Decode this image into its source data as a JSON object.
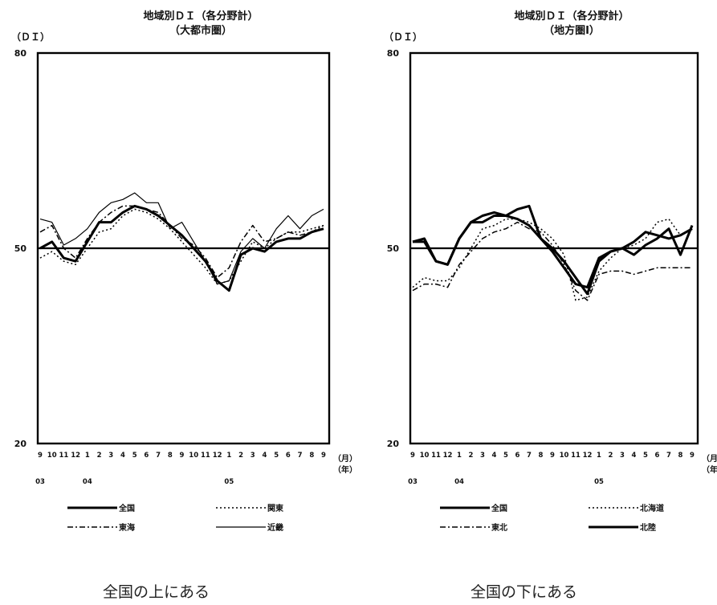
{
  "chart_data": [
    {
      "type": "line",
      "title": "地域別ＤＩ（各分野計）",
      "subtitle": "（大都市圏）",
      "ylabel": "（ＤＩ）",
      "ylim": [
        20,
        80
      ],
      "yticks": [
        20,
        50,
        80
      ],
      "reference_line": 50,
      "x_categories": [
        "9",
        "10",
        "11",
        "12",
        "1",
        "2",
        "3",
        "4",
        "5",
        "6",
        "7",
        "8",
        "9",
        "10",
        "11",
        "12",
        "1",
        "2",
        "3",
        "4",
        "5",
        "6",
        "7",
        "8",
        "9"
      ],
      "x_unit_month": "（月）",
      "x_unit_year": "（年）",
      "year_labels": [
        {
          "label": "03",
          "index": 0
        },
        {
          "label": "04",
          "index": 4
        },
        {
          "label": "05",
          "index": 16
        }
      ],
      "series": [
        {
          "name": "全国",
          "style": "thick",
          "values": [
            50.0,
            51.0,
            48.5,
            48.0,
            51.0,
            54.0,
            54.0,
            55.5,
            56.5,
            56.0,
            55.0,
            53.5,
            52.0,
            50.0,
            48.0,
            45.0,
            43.5,
            49.0,
            50.0,
            49.5,
            51.0,
            51.5,
            51.5,
            52.5,
            53.0
          ]
        },
        {
          "name": "関東",
          "style": "dotted",
          "values": [
            48.5,
            49.5,
            48.0,
            47.5,
            50.0,
            52.5,
            53.0,
            55.0,
            56.0,
            55.5,
            54.5,
            53.0,
            51.0,
            49.0,
            47.0,
            44.5,
            45.0,
            48.0,
            51.0,
            50.0,
            51.5,
            52.5,
            52.5,
            53.0,
            53.5
          ]
        },
        {
          "name": "東海",
          "style": "dashdot",
          "values": [
            52.5,
            53.5,
            50.0,
            48.5,
            51.5,
            54.0,
            55.5,
            56.5,
            56.5,
            56.0,
            55.5,
            53.5,
            51.5,
            50.5,
            48.5,
            45.5,
            47.0,
            51.0,
            53.5,
            51.0,
            51.5,
            52.5,
            52.0,
            52.5,
            53.5
          ]
        },
        {
          "name": "近畿",
          "style": "thin",
          "values": [
            54.5,
            54.0,
            50.5,
            51.5,
            53.0,
            55.5,
            57.0,
            57.5,
            58.5,
            57.0,
            57.0,
            53.0,
            54.0,
            51.0,
            48.0,
            44.5,
            45.0,
            49.5,
            51.5,
            50.0,
            53.0,
            55.0,
            53.0,
            55.0,
            56.0
          ]
        }
      ],
      "legend": [
        "全国",
        "関東",
        "東海",
        "近畿"
      ],
      "caption": "全国の上にある"
    },
    {
      "type": "line",
      "title": "地域別ＤＩ（各分野計）",
      "subtitle": "（地方圏Ⅰ）",
      "ylabel": "（ＤＩ）",
      "ylim": [
        20,
        80
      ],
      "yticks": [
        20,
        50,
        80
      ],
      "reference_line": 50,
      "x_categories": [
        "9",
        "10",
        "11",
        "12",
        "1",
        "2",
        "3",
        "4",
        "5",
        "6",
        "7",
        "8",
        "9",
        "10",
        "11",
        "12",
        "1",
        "2",
        "3",
        "4",
        "5",
        "6",
        "7",
        "8",
        "9"
      ],
      "x_unit_month": "（月）",
      "x_unit_year": "（年）",
      "year_labels": [
        {
          "label": "03",
          "index": 0
        },
        {
          "label": "04",
          "index": 4
        },
        {
          "label": "05",
          "index": 16
        }
      ],
      "series": [
        {
          "name": "全国",
          "style": "thick",
          "values": [
            51.0,
            51.0,
            48.0,
            47.5,
            51.5,
            54.0,
            55.0,
            55.5,
            55.0,
            54.5,
            53.5,
            51.5,
            50.0,
            48.0,
            45.5,
            43.0,
            48.0,
            49.5,
            50.0,
            51.0,
            52.5,
            52.0,
            51.5,
            52.0,
            53.0
          ]
        },
        {
          "name": "北海道",
          "style": "dotted",
          "values": [
            44.0,
            45.5,
            45.0,
            45.0,
            47.0,
            50.0,
            53.0,
            53.5,
            54.5,
            54.5,
            54.0,
            53.0,
            51.5,
            49.0,
            42.0,
            42.5,
            46.5,
            48.5,
            50.0,
            50.5,
            51.5,
            54.0,
            54.5,
            52.0,
            53.0
          ]
        },
        {
          "name": "東北",
          "style": "dashdot",
          "values": [
            43.5,
            44.5,
            44.5,
            44.0,
            47.5,
            49.5,
            51.5,
            52.5,
            53.0,
            54.0,
            53.0,
            52.5,
            50.5,
            47.5,
            43.5,
            42.0,
            46.0,
            46.5,
            46.5,
            46.0,
            46.5,
            47.0,
            47.0,
            47.0,
            47.0
          ]
        },
        {
          "name": "北陸",
          "style": "thick",
          "values": [
            51.0,
            51.5,
            48.0,
            47.5,
            51.5,
            54.0,
            54.0,
            55.0,
            55.0,
            56.0,
            56.5,
            51.5,
            49.5,
            47.0,
            44.5,
            44.0,
            48.5,
            49.5,
            50.0,
            49.0,
            50.5,
            51.5,
            53.0,
            49.0,
            53.5
          ]
        }
      ],
      "legend": [
        "全国",
        "北海道",
        "東北",
        "北陸"
      ],
      "caption": "全国の下にある"
    }
  ]
}
